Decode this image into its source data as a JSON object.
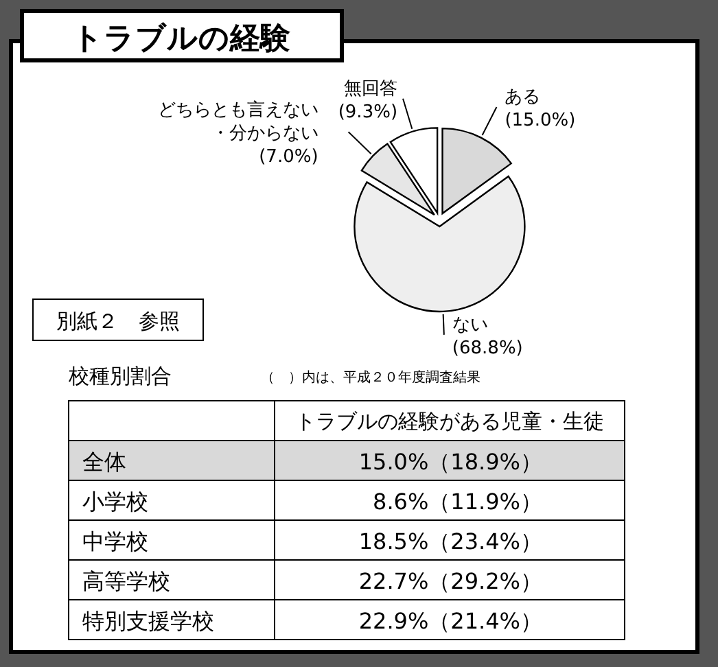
{
  "chart_data": [
    {
      "type": "pie",
      "title": "トラブルの経験",
      "categories": [
        "ある",
        "ない",
        "どちらとも言えない・分からない",
        "無回答"
      ],
      "values": [
        15.0,
        68.8,
        7.0,
        9.3
      ],
      "value_labels": [
        "(15.0%)",
        "(68.8%)",
        "(7.0%)",
        "(9.3%)"
      ],
      "colors": [
        "#d9d9d9",
        "#eeeeee",
        "#e6e6e6",
        "#ffffff"
      ],
      "annotations": [
        "別紙２　参照"
      ]
    },
    {
      "type": "other",
      "title": "校種別割合",
      "subtitle": "（　）内は、平成２０年度調査結果",
      "categories": [
        "トラブルの経験がある児童・生徒"
      ],
      "y_categories": [
        "全体",
        "小学校",
        "中学校",
        "高等学校",
        "特別支援学校"
      ],
      "cell_labels": [
        [
          "15.0%（18.9%）"
        ],
        [
          "8.6%（11.9%）"
        ],
        [
          "18.5%（23.4%）"
        ],
        [
          "22.7%（29.2%）"
        ],
        [
          "22.9%（21.4%）"
        ]
      ]
    }
  ]
}
